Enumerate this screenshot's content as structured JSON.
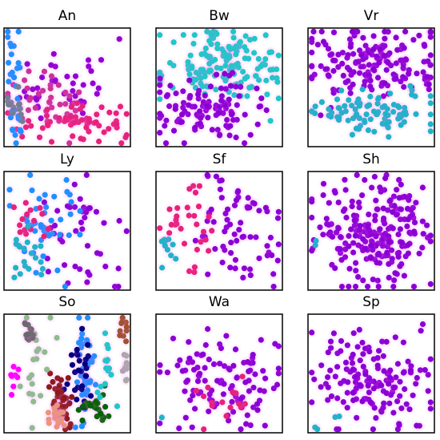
{
  "chart_data": [
    {
      "type": "scatter",
      "title": "An",
      "clusters": [
        {
          "color": "#9400d3",
          "n": 40,
          "cx": 0.45,
          "cy": 0.55,
          "sx": 0.2,
          "sy": 0.18,
          "seed": 11
        },
        {
          "color": "#cc3399",
          "n": 35,
          "cx": 0.4,
          "cy": 0.4,
          "sx": 0.18,
          "sy": 0.12,
          "seed": 12
        },
        {
          "color": "#e6227a",
          "n": 60,
          "cx": 0.55,
          "cy": 0.2,
          "sx": 0.25,
          "sy": 0.08,
          "seed": 13
        },
        {
          "color": "#1e90ff",
          "n": 30,
          "cx": 0.1,
          "cy": 0.55,
          "sx": 0.04,
          "sy": 0.3,
          "seed": 14
        },
        {
          "color": "#708090",
          "n": 14,
          "cx": 0.1,
          "cy": 0.35,
          "sx": 0.04,
          "sy": 0.06,
          "seed": 15
        }
      ]
    },
    {
      "type": "scatter",
      "title": "Bw",
      "clusters": [
        {
          "color": "#1ec8c8",
          "n": 150,
          "cx": 0.55,
          "cy": 0.68,
          "sx": 0.25,
          "sy": 0.15,
          "seed": 21
        },
        {
          "color": "#8a00d4",
          "n": 110,
          "cx": 0.38,
          "cy": 0.32,
          "sx": 0.2,
          "sy": 0.12,
          "seed": 22
        }
      ]
    },
    {
      "type": "scatter",
      "title": "Vr",
      "clusters": [
        {
          "color": "#8a00d4",
          "n": 170,
          "cx": 0.5,
          "cy": 0.7,
          "sx": 0.3,
          "sy": 0.15,
          "seed": 31
        },
        {
          "color": "#1eb4c8",
          "n": 90,
          "cx": 0.5,
          "cy": 0.3,
          "sx": 0.3,
          "sy": 0.09,
          "seed": 32
        }
      ]
    },
    {
      "type": "scatter",
      "title": "Ly",
      "clusters": [
        {
          "color": "#8a00d4",
          "n": 45,
          "cx": 0.65,
          "cy": 0.45,
          "sx": 0.2,
          "sy": 0.25,
          "seed": 41
        },
        {
          "color": "#1e90ff",
          "n": 40,
          "cx": 0.3,
          "cy": 0.6,
          "sx": 0.16,
          "sy": 0.22,
          "seed": 42
        },
        {
          "color": "#e6227a",
          "n": 15,
          "cx": 0.18,
          "cy": 0.6,
          "sx": 0.08,
          "sy": 0.15,
          "seed": 43
        },
        {
          "color": "#1eb4c8",
          "n": 20,
          "cx": 0.18,
          "cy": 0.25,
          "sx": 0.1,
          "sy": 0.12,
          "seed": 44
        }
      ]
    },
    {
      "type": "scatter",
      "title": "Sf",
      "clusters": [
        {
          "color": "#8a00d4",
          "n": 70,
          "cx": 0.62,
          "cy": 0.5,
          "sx": 0.2,
          "sy": 0.25,
          "seed": 51
        },
        {
          "color": "#e6227a",
          "n": 30,
          "cx": 0.25,
          "cy": 0.55,
          "sx": 0.1,
          "sy": 0.2,
          "seed": 52
        },
        {
          "color": "#1eb4c8",
          "n": 10,
          "cx": 0.1,
          "cy": 0.38,
          "sx": 0.04,
          "sy": 0.08,
          "seed": 53
        }
      ]
    },
    {
      "type": "scatter",
      "title": "Sh",
      "clusters": [
        {
          "color": "#8a00d4",
          "n": 230,
          "cx": 0.52,
          "cy": 0.5,
          "sx": 0.23,
          "sy": 0.23,
          "seed": 61
        },
        {
          "color": "#1eb4c8",
          "n": 2,
          "cx": 0.05,
          "cy": 0.4,
          "sx": 0.01,
          "sy": 0.01,
          "seed": 62
        }
      ]
    },
    {
      "type": "scatter",
      "title": "So",
      "clusters": [
        {
          "color": "#1e90ff",
          "n": 40,
          "cx": 0.65,
          "cy": 0.5,
          "sx": 0.04,
          "sy": 0.22,
          "seed": 71
        },
        {
          "color": "#000080",
          "n": 30,
          "cx": 0.6,
          "cy": 0.45,
          "sx": 0.06,
          "sy": 0.18,
          "seed": 72
        },
        {
          "color": "#8b1a1a",
          "n": 40,
          "cx": 0.45,
          "cy": 0.3,
          "sx": 0.05,
          "sy": 0.12,
          "seed": 73
        },
        {
          "color": "#006400",
          "n": 25,
          "cx": 0.73,
          "cy": 0.2,
          "sx": 0.06,
          "sy": 0.06,
          "seed": 74
        },
        {
          "color": "#e9967a",
          "n": 20,
          "cx": 0.42,
          "cy": 0.15,
          "sx": 0.04,
          "sy": 0.05,
          "seed": 75
        },
        {
          "color": "#8fbc8f",
          "n": 20,
          "cx": 0.25,
          "cy": 0.45,
          "sx": 0.05,
          "sy": 0.25,
          "seed": 76
        },
        {
          "color": "#696969",
          "n": 14,
          "cx": 0.2,
          "cy": 0.85,
          "sx": 0.03,
          "sy": 0.06,
          "seed": 77
        },
        {
          "color": "#ff00ff",
          "n": 8,
          "cx": 0.08,
          "cy": 0.45,
          "sx": 0.02,
          "sy": 0.08,
          "seed": 78
        },
        {
          "color": "#a9a9a9",
          "n": 10,
          "cx": 0.97,
          "cy": 0.55,
          "sx": 0.02,
          "sy": 0.08,
          "seed": 79
        },
        {
          "color": "#a0522d",
          "n": 10,
          "cx": 0.95,
          "cy": 0.9,
          "sx": 0.02,
          "sy": 0.06,
          "seed": 80
        },
        {
          "color": "#1ec8c8",
          "n": 15,
          "cx": 0.8,
          "cy": 0.55,
          "sx": 0.03,
          "sy": 0.2,
          "seed": 81
        }
      ]
    },
    {
      "type": "scatter",
      "title": "Wa",
      "clusters": [
        {
          "color": "#8a00d4",
          "n": 110,
          "cx": 0.5,
          "cy": 0.4,
          "sx": 0.23,
          "sy": 0.2,
          "seed": 91
        },
        {
          "color": "#e6227a",
          "n": 15,
          "cx": 0.55,
          "cy": 0.25,
          "sx": 0.15,
          "sy": 0.1,
          "seed": 92
        },
        {
          "color": "#1eb4c8",
          "n": 1,
          "cx": 0.05,
          "cy": 0.12,
          "sx": 0.01,
          "sy": 0.01,
          "seed": 93
        }
      ]
    },
    {
      "type": "scatter",
      "title": "Sp",
      "clusters": [
        {
          "color": "#8a00d4",
          "n": 150,
          "cx": 0.5,
          "cy": 0.45,
          "sx": 0.24,
          "sy": 0.2,
          "seed": 101
        },
        {
          "color": "#1eb4c8",
          "n": 4,
          "cx": 0.15,
          "cy": 0.08,
          "sx": 0.06,
          "sy": 0.04,
          "seed": 102
        }
      ]
    }
  ]
}
